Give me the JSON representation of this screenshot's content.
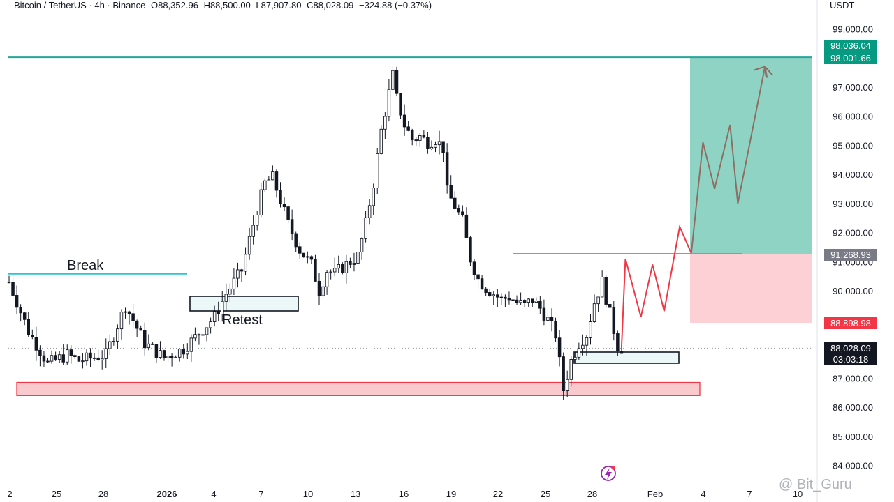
{
  "header": {
    "symbol": "Bitcoin / TetherUS · 4h · Binance",
    "open": "O88,352.96",
    "high": "H88,500.00",
    "low": "L87,907.80",
    "close": "C88,028.09",
    "change": "−324.88 (−0.37%)"
  },
  "price_unit": "USDT",
  "price_tags": {
    "t1": "98,036.04",
    "t2": "98,001.66",
    "t3": "91,268.93",
    "t4": "88,898.98",
    "current": "88,028.09",
    "countdown": "03:03:18"
  },
  "annotations": {
    "break": "Break",
    "retest": "Retest"
  },
  "watermark": "@ Bit_Guru",
  "colors": {
    "up": "#131722",
    "down": "#131722",
    "resistance": "#26a69a",
    "level": "#26c6da",
    "support_zone": "#f7b7bd",
    "target_zone": "#8fd3c5",
    "stop_zone": "#fcd0d4",
    "path_red": "#f23645",
    "path_brown": "#8d6e63"
  },
  "chart_data": {
    "type": "candlestick",
    "title": "",
    "xlabel": "",
    "ylabel": "",
    "ylim": [
      83600,
      99600
    ],
    "yticks": [
      84000,
      85000,
      86000,
      87000,
      88000,
      89000,
      90000,
      91000,
      92000,
      93000,
      94000,
      95000,
      96000,
      97000,
      98000,
      99000
    ],
    "ytick_labels": [
      "84,000.00",
      "85,000.00",
      "86,000.00",
      "87,000.00",
      "",
      "",
      "90,000.00",
      "91,000.00",
      "92,000.00",
      "93,000.00",
      "94,000.00",
      "95,000.00",
      "96,000.00",
      "97,000.00",
      "",
      "99,000.00"
    ],
    "xticks": [
      {
        "label": "2",
        "bold": false
      },
      {
        "label": "25",
        "bold": false
      },
      {
        "label": "28",
        "bold": false
      },
      {
        "label": "2026",
        "bold": true
      },
      {
        "label": "4",
        "bold": false
      },
      {
        "label": "7",
        "bold": false
      },
      {
        "label": "10",
        "bold": false
      },
      {
        "label": "13",
        "bold": false
      },
      {
        "label": "16",
        "bold": false
      },
      {
        "label": "19",
        "bold": false
      },
      {
        "label": "22",
        "bold": false
      },
      {
        "label": "25",
        "bold": false
      },
      {
        "label": "28",
        "bold": false
      },
      {
        "label": "Feb",
        "bold": false
      },
      {
        "label": "4",
        "bold": false
      },
      {
        "label": "7",
        "bold": false
      },
      {
        "label": "10",
        "bold": false
      }
    ],
    "grid": false,
    "price_path": [
      [
        0,
        90300
      ],
      [
        5,
        88600
      ],
      [
        10,
        87500
      ],
      [
        15,
        87800
      ],
      [
        18,
        87600
      ],
      [
        25,
        87800
      ],
      [
        30,
        89500
      ],
      [
        35,
        88200
      ],
      [
        40,
        87700
      ],
      [
        45,
        88000
      ],
      [
        48,
        88400
      ],
      [
        53,
        89100
      ],
      [
        56,
        89900
      ],
      [
        60,
        90700
      ],
      [
        64,
        92800
      ],
      [
        66,
        93700
      ],
      [
        68,
        93900
      ],
      [
        70,
        93100
      ],
      [
        72,
        92300
      ],
      [
        75,
        91400
      ],
      [
        78,
        90900
      ],
      [
        80,
        90000
      ],
      [
        82,
        90700
      ],
      [
        84,
        90600
      ],
      [
        86,
        90800
      ],
      [
        88,
        91000
      ],
      [
        90,
        91200
      ],
      [
        92,
        92300
      ],
      [
        94,
        93700
      ],
      [
        96,
        95500
      ],
      [
        98,
        96800
      ],
      [
        99,
        97400
      ],
      [
        100,
        96600
      ],
      [
        102,
        95700
      ],
      [
        104,
        95200
      ],
      [
        106,
        95300
      ],
      [
        108,
        95100
      ],
      [
        110,
        95200
      ],
      [
        112,
        94900
      ],
      [
        113,
        93400
      ],
      [
        115,
        92900
      ],
      [
        117,
        92400
      ],
      [
        119,
        91100
      ],
      [
        121,
        90400
      ],
      [
        123,
        90100
      ],
      [
        125,
        89900
      ],
      [
        127,
        89700
      ],
      [
        129,
        89800
      ],
      [
        131,
        89600
      ],
      [
        133,
        89500
      ],
      [
        135,
        89700
      ],
      [
        137,
        89400
      ],
      [
        139,
        89000
      ],
      [
        141,
        88500
      ],
      [
        143,
        86600
      ],
      [
        145,
        87600
      ],
      [
        147,
        88200
      ],
      [
        149,
        88500
      ],
      [
        151,
        89600
      ],
      [
        153,
        90300
      ],
      [
        155,
        89200
      ],
      [
        157,
        88100
      ],
      [
        158,
        88028
      ]
    ],
    "levels": {
      "resistance": 98020,
      "break_level": 90580,
      "retest_level": 91268.93,
      "support_zone": [
        86400,
        86850
      ],
      "target_zone": [
        91268.93,
        98036.04
      ],
      "stop_zone": [
        88898.98,
        91268.93
      ],
      "current": 88028.09
    },
    "projection_red": [
      [
        158,
        88050
      ],
      [
        159,
        91100
      ],
      [
        163,
        89100
      ],
      [
        166,
        90900
      ],
      [
        169,
        89300
      ],
      [
        173,
        92200
      ],
      [
        176,
        91290
      ]
    ],
    "projection_brown": [
      [
        176,
        91290
      ],
      [
        179,
        95100
      ],
      [
        182,
        93500
      ],
      [
        186,
        95700
      ],
      [
        188,
        93000
      ],
      [
        195,
        97700
      ],
      [
        197,
        97400
      ]
    ]
  }
}
